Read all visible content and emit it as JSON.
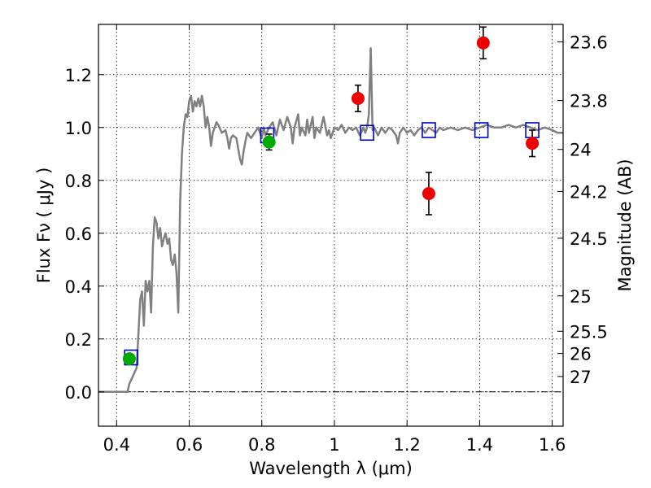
{
  "chart_data": {
    "type": "scatter",
    "xlabel": "Wavelength  λ (μm)",
    "ylabel": "Flux  Fν  ( μJy )",
    "ylabel_right": "Magnitude (AB)",
    "xlim": [
      0.35,
      1.63
    ],
    "ylim": [
      -0.13,
      1.39
    ],
    "grid": true,
    "x_ticks": [
      {
        "value": 0.4,
        "label": "0.4"
      },
      {
        "value": 0.6,
        "label": "0.6"
      },
      {
        "value": 0.8,
        "label": "0.8"
      },
      {
        "value": 1.0,
        "label": "1"
      },
      {
        "value": 1.2,
        "label": "1.2"
      },
      {
        "value": 1.4,
        "label": "1.4"
      },
      {
        "value": 1.6,
        "label": "1.6"
      }
    ],
    "y_ticks": [
      {
        "value": 0.0,
        "label": "0.0"
      },
      {
        "value": 0.2,
        "label": "0.2"
      },
      {
        "value": 0.4,
        "label": "0.4"
      },
      {
        "value": 0.6,
        "label": "0.6"
      },
      {
        "value": 0.8,
        "label": "0.8"
      },
      {
        "value": 1.0,
        "label": "1.0"
      },
      {
        "value": 1.2,
        "label": "1.2"
      }
    ],
    "right_ticks": [
      {
        "flux": 1.324,
        "label": "23.6"
      },
      {
        "flux": 1.102,
        "label": "23.8"
      },
      {
        "flux": 0.917,
        "label": "24"
      },
      {
        "flux": 0.758,
        "label": "24.2"
      },
      {
        "flux": 0.581,
        "label": "24.5"
      },
      {
        "flux": 0.363,
        "label": "25"
      },
      {
        "flux": 0.229,
        "label": "25.5"
      },
      {
        "flux": 0.145,
        "label": "26"
      },
      {
        "flux": 0.058,
        "label": "27"
      }
    ],
    "colors": {
      "spectrum": "#808080",
      "model": "#0000cc",
      "green": "#00aa00",
      "red": "#ee0000",
      "errorbar": "#000000"
    },
    "series": [
      {
        "type": "line",
        "points": [
          [
            0.35,
            0.0
          ],
          [
            0.43,
            0.0
          ],
          [
            0.435,
            0.03
          ],
          [
            0.445,
            0.06
          ],
          [
            0.455,
            0.09
          ],
          [
            0.46,
            0.22
          ],
          [
            0.465,
            0.35
          ],
          [
            0.47,
            0.38
          ],
          [
            0.475,
            0.25
          ],
          [
            0.48,
            0.42
          ],
          [
            0.485,
            0.38
          ],
          [
            0.49,
            0.42
          ],
          [
            0.495,
            0.3
          ],
          [
            0.5,
            0.55
          ],
          [
            0.505,
            0.66
          ],
          [
            0.51,
            0.64
          ],
          [
            0.515,
            0.58
          ],
          [
            0.52,
            0.62
          ],
          [
            0.525,
            0.55
          ],
          [
            0.53,
            0.58
          ],
          [
            0.535,
            0.6
          ],
          [
            0.54,
            0.56
          ],
          [
            0.545,
            0.58
          ],
          [
            0.55,
            0.5
          ],
          [
            0.555,
            0.48
          ],
          [
            0.56,
            0.52
          ],
          [
            0.565,
            0.45
          ],
          [
            0.57,
            0.3
          ],
          [
            0.575,
            0.72
          ],
          [
            0.58,
            0.9
          ],
          [
            0.585,
            1.0
          ],
          [
            0.59,
            1.05
          ],
          [
            0.595,
            1.04
          ],
          [
            0.6,
            1.1
          ],
          [
            0.605,
            1.12
          ],
          [
            0.61,
            1.06
          ],
          [
            0.615,
            1.1
          ],
          [
            0.62,
            1.08
          ],
          [
            0.625,
            1.11
          ],
          [
            0.63,
            1.08
          ],
          [
            0.635,
            1.12
          ],
          [
            0.64,
            1.08
          ],
          [
            0.645,
            1.0
          ],
          [
            0.65,
            1.04
          ],
          [
            0.655,
            1.0
          ],
          [
            0.66,
            0.93
          ],
          [
            0.665,
            0.98
          ],
          [
            0.67,
            1.0
          ],
          [
            0.675,
            1.02
          ],
          [
            0.68,
            1.01
          ],
          [
            0.69,
            0.98
          ],
          [
            0.7,
            0.99
          ],
          [
            0.705,
            0.96
          ],
          [
            0.71,
            0.92
          ],
          [
            0.715,
            0.96
          ],
          [
            0.72,
            0.97
          ],
          [
            0.73,
            0.96
          ],
          [
            0.74,
            0.88
          ],
          [
            0.745,
            0.86
          ],
          [
            0.75,
            0.91
          ],
          [
            0.755,
            0.95
          ],
          [
            0.76,
            0.98
          ],
          [
            0.77,
            0.96
          ],
          [
            0.78,
            0.98
          ],
          [
            0.79,
            1.0
          ],
          [
            0.8,
            0.96
          ],
          [
            0.805,
            1.0
          ],
          [
            0.81,
            0.97
          ],
          [
            0.82,
            1.0
          ],
          [
            0.83,
            1.02
          ],
          [
            0.84,
            0.97
          ],
          [
            0.85,
            1.03
          ],
          [
            0.86,
            0.99
          ],
          [
            0.87,
            1.04
          ],
          [
            0.88,
            1.0
          ],
          [
            0.885,
            0.94
          ],
          [
            0.89,
            1.0
          ],
          [
            0.9,
            1.05
          ],
          [
            0.905,
            0.97
          ],
          [
            0.91,
            1.0
          ],
          [
            0.92,
            0.97
          ],
          [
            0.925,
            1.03
          ],
          [
            0.93,
            0.98
          ],
          [
            0.94,
            1.04
          ],
          [
            0.945,
            0.96
          ],
          [
            0.95,
            1.0
          ],
          [
            0.96,
            0.98
          ],
          [
            0.97,
            1.04
          ],
          [
            0.98,
            0.97
          ],
          [
            0.985,
            0.99
          ],
          [
            0.99,
            0.96
          ],
          [
            1.0,
            1.0
          ],
          [
            1.01,
            0.99
          ],
          [
            1.02,
            1.01
          ],
          [
            1.03,
            0.98
          ],
          [
            1.04,
            1.0
          ],
          [
            1.05,
            0.99
          ],
          [
            1.06,
            1.0
          ],
          [
            1.07,
            0.97
          ],
          [
            1.08,
            1.0
          ],
          [
            1.085,
            0.98
          ],
          [
            1.09,
            1.0
          ],
          [
            1.095,
            1.05
          ],
          [
            1.1,
            1.3
          ],
          [
            1.105,
            0.99
          ],
          [
            1.11,
            1.0
          ],
          [
            1.12,
            0.97
          ],
          [
            1.13,
            1.0
          ],
          [
            1.14,
            0.98
          ],
          [
            1.15,
            1.0
          ],
          [
            1.16,
            0.99
          ],
          [
            1.17,
            0.97
          ],
          [
            1.175,
            0.94
          ],
          [
            1.18,
            0.98
          ],
          [
            1.19,
            1.0
          ],
          [
            1.2,
            0.98
          ],
          [
            1.21,
            0.99
          ],
          [
            1.22,
            0.97
          ],
          [
            1.23,
            0.99
          ],
          [
            1.24,
            1.0
          ],
          [
            1.25,
            0.98
          ],
          [
            1.26,
            1.0
          ],
          [
            1.27,
            0.99
          ],
          [
            1.28,
            0.98
          ],
          [
            1.29,
            1.0
          ],
          [
            1.3,
            0.99
          ],
          [
            1.32,
            1.0
          ],
          [
            1.34,
            0.99
          ],
          [
            1.36,
            1.0
          ],
          [
            1.38,
            0.99
          ],
          [
            1.4,
            1.0
          ],
          [
            1.42,
            1.01
          ],
          [
            1.44,
            1.0
          ],
          [
            1.46,
            1.0
          ],
          [
            1.48,
            1.01
          ],
          [
            1.5,
            1.0
          ],
          [
            1.52,
            1.01
          ],
          [
            1.54,
            1.0
          ],
          [
            1.56,
            0.99
          ],
          [
            1.58,
            1.0
          ],
          [
            1.6,
            0.99
          ],
          [
            1.615,
            0.98
          ],
          [
            1.63,
            0.98
          ]
        ]
      },
      {
        "type": "model_squares",
        "points": [
          [
            0.44,
            0.13
          ],
          [
            0.815,
            0.97
          ],
          [
            1.09,
            0.98
          ],
          [
            1.26,
            0.99
          ],
          [
            1.405,
            0.99
          ],
          [
            1.545,
            0.99
          ]
        ]
      },
      {
        "type": "points_green",
        "points": [
          {
            "x": 0.435,
            "y": 0.125,
            "err": 0.018
          },
          {
            "x": 0.82,
            "y": 0.945,
            "err": 0.03
          }
        ]
      },
      {
        "type": "points_red",
        "points": [
          {
            "x": 1.065,
            "y": 1.11,
            "err": 0.05
          },
          {
            "x": 1.26,
            "y": 0.75,
            "err": 0.08
          },
          {
            "x": 1.41,
            "y": 1.32,
            "err": 0.06
          },
          {
            "x": 1.545,
            "y": 0.94,
            "err": 0.05
          }
        ]
      }
    ]
  }
}
